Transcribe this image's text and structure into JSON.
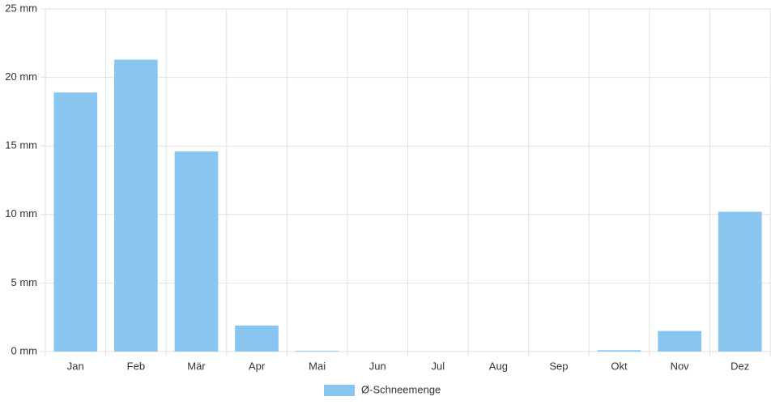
{
  "chart_data": {
    "type": "bar",
    "categories": [
      "Jan",
      "Feb",
      "Mär",
      "Apr",
      "Mai",
      "Jun",
      "Jul",
      "Aug",
      "Sep",
      "Okt",
      "Nov",
      "Dez"
    ],
    "series": [
      {
        "name": "Ø-Schneemenge",
        "color": "#88c6f0",
        "values": [
          18.9,
          21.3,
          14.6,
          1.9,
          0.05,
          0,
          0,
          0,
          0,
          0.1,
          1.5,
          10.2
        ]
      }
    ],
    "ylim": [
      0,
      25
    ],
    "yticks": [
      {
        "value": 0,
        "label": "0 mm"
      },
      {
        "value": 5,
        "label": "5 mm"
      },
      {
        "value": 10,
        "label": "10 mm"
      },
      {
        "value": 15,
        "label": "15 mm"
      },
      {
        "value": 20,
        "label": "20 mm"
      },
      {
        "value": 25,
        "label": "25 mm"
      }
    ],
    "grid": true,
    "legend": "bottom"
  }
}
